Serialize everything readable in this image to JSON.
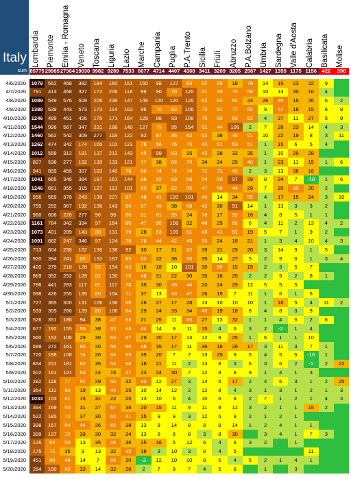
{
  "title": "Italy",
  "sum_label": "sum",
  "colors": {
    "darkbrown": "#7f3f0c",
    "brown": "#b55c09",
    "orange": "#f08800",
    "amber": "#f5b400",
    "yellow": "#ffff00",
    "lightgreen": "#b6e14b",
    "green": "#2fbf40",
    "highlight_red": "#ff0000",
    "highlight_dark": "#2b0a00",
    "sum_bg": "#6b1a24",
    "title_bg": "#1f4e79"
  },
  "chart_data": {
    "type": "heatmap",
    "regions": [
      "Lombardia",
      "Piemonte",
      "Emilia - Romagna",
      "Veneto",
      "Toscana",
      "Liguria",
      "Lazio",
      "Marche",
      "Campania",
      "Puglia",
      "P.A.Trento",
      "Sicilia",
      "Friuli",
      "Abruzzo",
      "P.A.Bolzano",
      "Umbria",
      "Sardegna",
      "Valle d'Aosta",
      "Calabria",
      "Basilicata",
      "Molise"
    ],
    "sums": [
      "85775",
      "29985",
      "27364",
      "19030",
      "9982",
      "9289",
      "7533",
      "6677",
      "4714",
      "4407",
      "4368",
      "3411",
      "3209",
      "3205",
      "2587",
      "1427",
      "1355",
      "1175",
      "1156",
      "422",
      "390"
    ],
    "dates": [
      "4/6/2020",
      "4/7/2020",
      "4/8/2020",
      "4/9/2020",
      "4/10/2020",
      "4/11/2020",
      "4/12/2020",
      "4/13/2020",
      "4/14/2020",
      "4/15/2020",
      "4/16/2020",
      "4/17/2020",
      "4/18/2020",
      "4/19/2020",
      "4/20/2020",
      "4/21/2020",
      "4/22/2020",
      "4/23/2020",
      "4/24/2020",
      "4/25/2020",
      "4/26/2020",
      "4/27/2020",
      "4/28/2020",
      "4/29/2020",
      "4/30/2020",
      "5/1/2020",
      "5/2/2020",
      "5/3/2020",
      "5/4/2020",
      "5/5/2020",
      "5/6/2020",
      "5/7/2020",
      "5/8/2020",
      "5/9/2020",
      "5/10/2020",
      "5/11/2020",
      "5/12/2020",
      "5/13/2020",
      "5/14/2020",
      "5/15/2020",
      "5/16/2020",
      "5/17/2020",
      "5/18/2020",
      "5/19/2020",
      "5/20/2020"
    ],
    "values": [
      [
        "1079",
        "562",
        "468",
        "382",
        "184",
        "160",
        "151",
        "150",
        "98",
        "127",
        "83",
        "52",
        "55",
        "18",
        "78",
        "14",
        "15",
        "23",
        "22",
        "9",
        ""
      ],
      [
        "791",
        "413",
        "468",
        "327",
        "172",
        "206",
        "118",
        "96",
        "90",
        "70",
        "120",
        "51",
        "50",
        "78",
        "69",
        "10",
        "13",
        "30",
        "16",
        "4",
        ""
      ],
      [
        "1089",
        "549",
        "576",
        "509",
        "209",
        "236",
        "147",
        "149",
        "120",
        "120",
        "126",
        "62",
        "65",
        "60",
        "24",
        "26",
        "40",
        "15",
        "26",
        "6",
        "2"
      ],
      [
        "1388",
        "639",
        "443",
        "573",
        "173",
        "114",
        "163",
        "96",
        "76",
        "82",
        "106",
        "73",
        "81",
        "72",
        "66",
        "9",
        "51",
        "18",
        "15",
        "6",
        "8"
      ],
      [
        "1246",
        "499",
        "451",
        "426",
        "175",
        "171",
        "164",
        "129",
        "98",
        "93",
        "108",
        "70",
        "50",
        "83",
        "52",
        "4",
        "37",
        "11",
        "27",
        "5",
        "9"
      ],
      [
        "1544",
        "996",
        "567",
        "347",
        "231",
        "188",
        "140",
        "127",
        "75",
        "95",
        "154",
        "62",
        "44",
        "106",
        "2",
        "7",
        "28",
        "23",
        "14",
        "4",
        "3"
      ],
      [
        "1460",
        "562",
        "542",
        "309",
        "277",
        "118",
        "122",
        "92",
        "87",
        "85",
        "83",
        "52",
        "38",
        "40",
        "61",
        "10",
        "22",
        "19",
        "8",
        "3",
        "11"
      ],
      [
        "1262",
        "474",
        "342",
        "174",
        "165",
        "102",
        "123",
        "78",
        "66",
        "76",
        "73",
        "42",
        "51",
        "53",
        "51",
        "1",
        "15",
        "6",
        "5",
        "4",
        ""
      ],
      [
        "1012",
        "558",
        "312",
        "181",
        "137",
        "212",
        "143",
        "45",
        "99",
        "53",
        "15",
        "43",
        "38",
        "32",
        "35",
        "1",
        "10",
        "20",
        "28",
        "",
        ""
      ],
      [
        "827",
        "538",
        "277",
        "192",
        "139",
        "133",
        "121",
        "77",
        "38",
        "66",
        "79",
        "34",
        "24",
        "29",
        "40",
        "1",
        "23",
        "11",
        "15",
        "1",
        "6"
      ],
      [
        "941",
        "859",
        "456",
        "307",
        "183",
        "145",
        "78",
        "60",
        "74",
        "74",
        "74",
        "72",
        "72",
        "43",
        "2",
        "3",
        "13",
        "36",
        "16",
        "",
        ""
      ],
      [
        "1041",
        "665",
        "346",
        "384",
        "187",
        "161",
        "144",
        "88",
        "52",
        "69",
        "59",
        "54",
        "50",
        "97",
        "29",
        "8",
        "24",
        "7",
        "-18",
        "1",
        "6"
      ],
      [
        "1246",
        "661",
        "355",
        "315",
        "127",
        "113",
        "101",
        "53",
        "37",
        "82",
        "55",
        "47",
        "56",
        "44",
        "29",
        "7",
        "20",
        "80",
        "20",
        "2",
        ""
      ],
      [
        "956",
        "569",
        "378",
        "243",
        "136",
        "227",
        "87",
        "48",
        "41",
        "120",
        "101",
        "45",
        "14",
        "34",
        "55",
        "4",
        "17",
        "15",
        "24",
        "3",
        "10"
      ],
      [
        "755",
        "292",
        "367",
        "192",
        "136",
        "143",
        "60",
        "57",
        "45",
        "38",
        "68",
        "42",
        "30",
        "91",
        "14",
        "1",
        "13",
        "3",
        "3",
        "2",
        ""
      ],
      [
        "960",
        "606",
        "226",
        "277",
        "96",
        "95",
        "80",
        "51",
        "61",
        "55",
        "24",
        "76",
        "17",
        "55",
        "16",
        "4",
        "8",
        "5",
        "1",
        "1",
        ""
      ],
      [
        "1161",
        "784",
        "342",
        "334",
        "97",
        "164",
        "80",
        "47",
        "50",
        "108",
        "32",
        "48",
        "25",
        "66",
        "6",
        "4",
        "11",
        "2",
        "13",
        "4",
        "2"
      ],
      [
        "1073",
        "401",
        "289",
        "143",
        "80",
        "131",
        "79",
        "28",
        "53",
        "109",
        "61",
        "43",
        "41",
        "52",
        "19",
        "5",
        "7",
        "1",
        "9",
        "2",
        ""
      ],
      [
        "1091",
        "662",
        "247",
        "346",
        "97",
        "124",
        "78",
        "76",
        "44",
        "42",
        "49",
        "55",
        "24",
        "18",
        "21",
        "1",
        "3",
        "4",
        "10",
        "4",
        "3"
      ],
      [
        "713",
        "604",
        "236",
        "162",
        "136",
        "136",
        "92",
        "30",
        "17",
        "31",
        "62",
        "39",
        "21",
        "29",
        "20",
        "3",
        "14",
        "9",
        "1",
        "5",
        ""
      ],
      [
        "920",
        "394",
        "241",
        "60",
        "132",
        "167",
        "85",
        "53",
        "32",
        "36",
        "56",
        "35",
        "14",
        "27",
        "5",
        "2",
        "9",
        "6",
        "1",
        "3",
        "4"
      ],
      [
        "420",
        "275",
        "218",
        "128",
        "52",
        "154",
        "63",
        "16",
        "18",
        "10",
        "101",
        "30",
        "60",
        "15",
        "15",
        "2",
        "3",
        "5",
        "7",
        "",
        ""
      ],
      [
        "869",
        "352",
        "252",
        "129",
        "52",
        "130",
        "75",
        "48",
        "31",
        "22",
        "30",
        "35",
        "18",
        "25",
        "2",
        "2",
        "9",
        "2",
        "8",
        "1",
        ""
      ],
      [
        "786",
        "441",
        "283",
        "117",
        "61",
        "117",
        "78",
        "35",
        "30",
        "49",
        "44",
        "20",
        "24",
        "29",
        "12",
        "5",
        "5",
        "5",
        "",
        "",
        ""
      ],
      [
        "598",
        "426",
        "255",
        "135",
        "60",
        "104",
        "71",
        "37",
        "13",
        "43",
        "47",
        "26",
        "15",
        "7",
        "11",
        "1",
        "6",
        "1",
        "6",
        "",
        ""
      ],
      [
        "727",
        "365",
        "300",
        "131",
        "109",
        "136",
        "56",
        "26",
        "27",
        "17",
        "28",
        "13",
        "10",
        "10",
        "10",
        "1",
        "16",
        "5",
        "4",
        "11",
        "2"
      ],
      [
        "533",
        "305",
        "286",
        "125",
        "80",
        "106",
        "64",
        "29",
        "24",
        "33",
        "34",
        "49",
        "19",
        "18",
        "8",
        "4",
        "8",
        "3",
        "9",
        "",
        ""
      ],
      [
        "526",
        "351",
        "186",
        "94",
        "38",
        "47",
        "53",
        "21",
        "25",
        "11",
        "66",
        "27",
        "13",
        "32",
        "1",
        "1",
        "4",
        "6",
        "2",
        "6",
        ""
      ],
      [
        "677",
        "192",
        "155",
        "55",
        "38",
        "63",
        "48",
        "44",
        "14",
        "9",
        "11",
        "15",
        "4",
        "6",
        "3",
        "2",
        "-2",
        "1",
        "4",
        "",
        ""
      ],
      [
        "560",
        "152",
        "106",
        "29",
        "30",
        "63",
        "67",
        "29",
        "20",
        "17",
        "13",
        "12",
        "9",
        "25",
        "1",
        "6",
        "1",
        "1",
        "10",
        "",
        ""
      ],
      [
        "589",
        "272",
        "161",
        "80",
        "20",
        "56",
        "60",
        "48",
        "35",
        "17",
        "11",
        "36",
        "16",
        "29",
        "17",
        "3",
        "11",
        "3",
        "7",
        "1",
        ""
      ],
      [
        "720",
        "198",
        "108",
        "74",
        "26",
        "54",
        "59",
        "35",
        "20",
        "7",
        "7",
        "13",
        "25",
        "9",
        "5",
        "4",
        "5",
        "6",
        "-16",
        "1",
        ""
      ],
      [
        "834",
        "231",
        "181",
        "62",
        "35",
        "52",
        "58",
        "18",
        "21",
        "11",
        "2",
        "13",
        "8",
        "3",
        "6",
        "3",
        "6",
        "2",
        "-1",
        "2",
        "22"
      ],
      [
        "502",
        "161",
        "121",
        "53",
        "24",
        "15",
        "47",
        "23",
        "24",
        "30",
        "7",
        "12",
        "8",
        "8",
        "9",
        "1",
        "4",
        "1",
        "3",
        "",
        ""
      ],
      [
        "282",
        "118",
        "77",
        "51",
        "29",
        "50",
        "32",
        "40",
        "12",
        "27",
        "3",
        "14",
        "6",
        "17",
        "2",
        "4",
        "6",
        "3",
        "1",
        "2",
        "25"
      ],
      [
        "364",
        "111",
        "80",
        "19",
        "13",
        "44",
        "25",
        "10",
        "14",
        "12",
        "2",
        "12",
        "8",
        "4",
        "3",
        "1",
        "3",
        "1",
        "2",
        "1",
        "3"
      ],
      [
        "1033",
        "153",
        "41",
        "15",
        "31",
        "22",
        "25",
        "13",
        "10",
        "6",
        "4",
        "10",
        "6",
        "8",
        "2",
        "7",
        "1",
        "2",
        "1",
        "4",
        "3"
      ],
      [
        "394",
        "169",
        "50",
        "31",
        "27",
        "67",
        "38",
        "20",
        "15",
        "11",
        "9",
        "11",
        "8",
        "12",
        "3",
        "2",
        "1",
        "1",
        "15",
        "2",
        ""
      ],
      [
        "522",
        "185",
        "73",
        "37",
        "30",
        "65",
        "41",
        "15",
        "9",
        "9",
        "3",
        "12",
        "5",
        "9",
        "2",
        "1",
        "2",
        "1",
        "",
        "",
        ""
      ],
      [
        "398",
        "157",
        "54",
        "44",
        "26",
        "65",
        "38",
        "13",
        "8",
        "14",
        "8",
        "8",
        "8",
        "14",
        "1",
        "2",
        "4",
        "1",
        "1",
        "",
        ""
      ],
      [
        "399",
        "137",
        "72",
        "39",
        "30",
        "32",
        "24",
        "13",
        "8",
        "8",
        "8",
        "3",
        "8",
        "30",
        "",
        "3",
        "4",
        "1",
        "7",
        "3",
        ""
      ],
      [
        "126",
        "64",
        "50",
        "13",
        "35",
        "48",
        "36",
        "25",
        "16",
        "5",
        "12",
        "6",
        "4",
        "8",
        "3",
        "2",
        "",
        "1",
        "",
        "",
        ""
      ],
      [
        "175",
        "72",
        "35",
        "9",
        "13",
        "32",
        "49",
        "18",
        "3",
        "10",
        "3",
        "8",
        "4",
        "5",
        "",
        "",
        "",
        "",
        "11",
        "",
        ""
      ],
      [
        "451",
        "80",
        "48",
        "14",
        "7",
        "66",
        "20",
        "-3",
        "12",
        "10",
        "10",
        "8",
        "5",
        "4",
        "5",
        "2",
        "1",
        "4",
        "1",
        "",
        ""
      ],
      [
        "284",
        "150",
        "50",
        "33",
        "14",
        "32",
        "28",
        "2",
        "7",
        "8",
        "7",
        "4",
        "5",
        "8",
        "",
        "1",
        "",
        "3",
        "",
        "",
        ""
      ]
    ]
  }
}
